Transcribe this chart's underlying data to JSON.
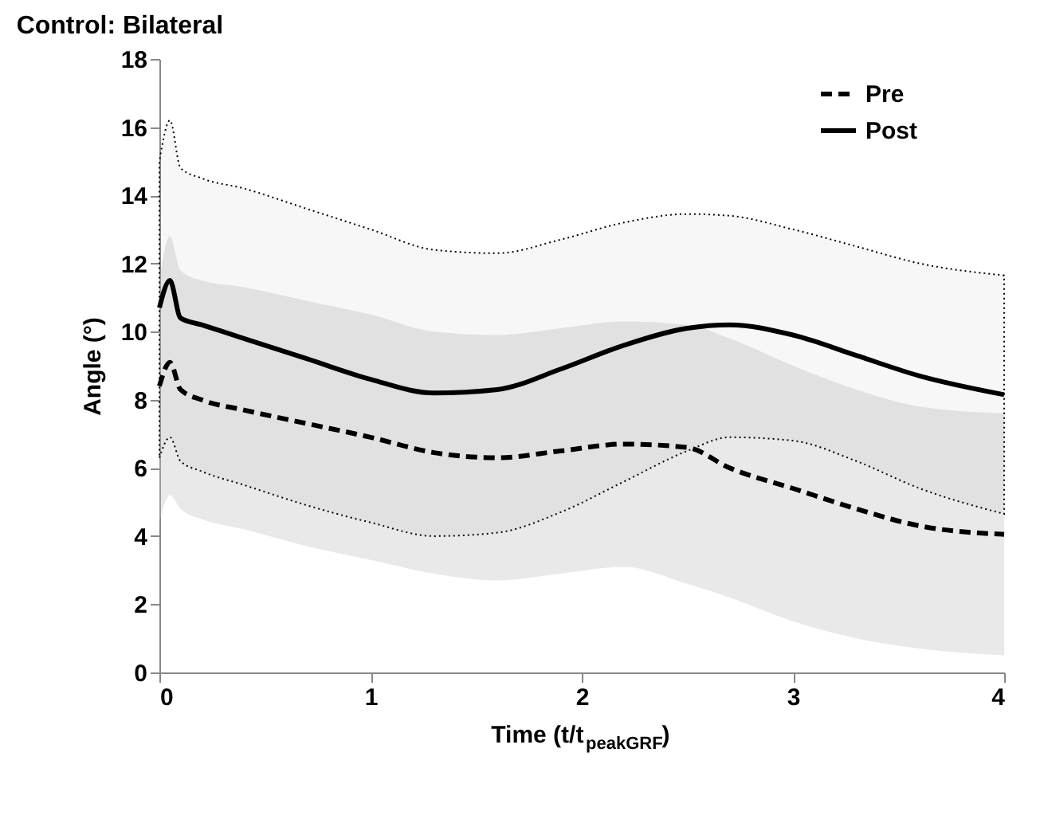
{
  "chart_data": {
    "type": "line",
    "title": "Control: Bilateral",
    "xlabel": "Time (t/t$_{peakGRF}$)",
    "ylabel": "Angle (°)",
    "x": [
      0,
      0.05,
      0.1,
      0.2,
      0.4,
      0.7,
      1.0,
      1.3,
      1.6,
      1.9,
      2.2,
      2.5,
      2.7,
      3.0,
      3.3,
      3.6,
      4.0
    ],
    "series": [
      {
        "name": "Pre",
        "color": "#000000",
        "line_style": "dashed",
        "values": [
          8.4,
          9.1,
          8.3,
          8.0,
          7.7,
          7.3,
          6.9,
          6.45,
          6.3,
          6.5,
          6.7,
          6.6,
          6.0,
          5.4,
          4.8,
          4.3,
          4.05
        ],
        "upper": [
          11.5,
          12.8,
          11.8,
          11.5,
          11.3,
          10.9,
          10.5,
          10.0,
          9.9,
          10.1,
          10.3,
          10.2,
          9.8,
          9.0,
          8.3,
          7.8,
          7.6
        ],
        "lower": [
          4.4,
          5.2,
          4.8,
          4.5,
          4.2,
          3.7,
          3.3,
          2.9,
          2.7,
          2.9,
          3.1,
          2.6,
          2.2,
          1.5,
          1.0,
          0.7,
          0.5
        ]
      },
      {
        "name": "Post",
        "color": "#000000",
        "line_style": "solid",
        "values": [
          10.7,
          11.5,
          10.4,
          10.2,
          9.8,
          9.2,
          8.6,
          8.2,
          8.3,
          8.9,
          9.6,
          10.1,
          10.2,
          9.9,
          9.3,
          8.7,
          8.15
        ],
        "upper": [
          15.0,
          16.2,
          14.8,
          14.5,
          14.2,
          13.6,
          13.0,
          12.4,
          12.3,
          12.7,
          13.2,
          13.45,
          13.4,
          13.0,
          12.5,
          12.0,
          11.65
        ],
        "lower": [
          6.3,
          6.9,
          6.2,
          5.9,
          5.5,
          4.9,
          4.4,
          4.0,
          4.1,
          4.7,
          5.6,
          6.5,
          6.9,
          6.8,
          6.2,
          5.4,
          4.65
        ]
      }
    ],
    "xlim": [
      0,
      4
    ],
    "xticks": [
      0,
      1,
      2,
      3,
      4
    ],
    "ylim": [
      0,
      18
    ],
    "yticks": [
      0,
      2,
      4,
      6,
      8,
      10,
      12,
      14,
      16,
      18
    ],
    "legend": "top right",
    "grid": false,
    "marker": "none"
  }
}
